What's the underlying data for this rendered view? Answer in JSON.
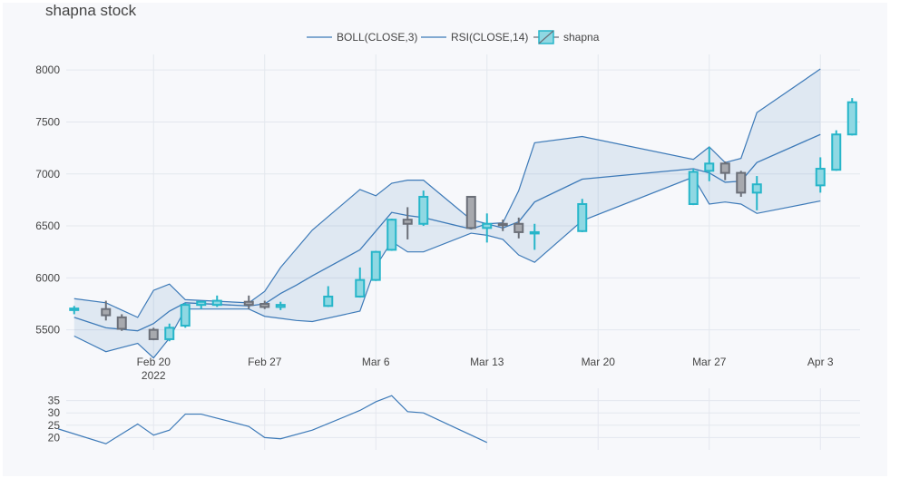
{
  "title": "shapna stock",
  "colors": {
    "line": "#3d7ab8",
    "band": "rgba(61,122,184,0.13)",
    "up": "#26b5c9",
    "up_fill": "#8fd8e3",
    "down": "#6b6f78",
    "down_fill": "#a7a9ae",
    "grid": "#e4e7ee",
    "background": "#f7f8fb"
  },
  "legend": [
    "BOLL(CLOSE,3)",
    "RSI(CLOSE,14)",
    "shapna"
  ],
  "chart_data": [
    {
      "type": "candlestick",
      "name": "shapna",
      "ylim": [
        5200,
        8150
      ],
      "yticks": [
        5500,
        6000,
        6500,
        7000,
        7500,
        8000
      ],
      "xticks": [
        {
          "date": "2022-02-20",
          "label": "Feb 20",
          "sub": "2022"
        },
        {
          "date": "2022-02-27",
          "label": "Feb 27",
          "sub": ""
        },
        {
          "date": "2022-03-06",
          "label": "Mar 6",
          "sub": ""
        },
        {
          "date": "2022-03-13",
          "label": "Mar 13",
          "sub": ""
        },
        {
          "date": "2022-03-20",
          "label": "Mar 20",
          "sub": ""
        },
        {
          "date": "2022-03-27",
          "label": "Mar 27",
          "sub": ""
        },
        {
          "date": "2022-04-03",
          "label": "Apr 3",
          "sub": ""
        }
      ],
      "xrange": [
        "2022-02-14T12:00",
        "2022-04-05T12:00"
      ],
      "candles": [
        {
          "date": "2022-02-15",
          "open": 5690,
          "high": 5730,
          "low": 5650,
          "close": 5705
        },
        {
          "date": "2022-02-17",
          "open": 5700,
          "high": 5780,
          "low": 5590,
          "close": 5640
        },
        {
          "date": "2022-02-18",
          "open": 5620,
          "high": 5650,
          "low": 5490,
          "close": 5510
        },
        {
          "date": "2022-02-20",
          "open": 5500,
          "high": 5520,
          "low": 5400,
          "close": 5410
        },
        {
          "date": "2022-02-21",
          "open": 5410,
          "high": 5560,
          "low": 5390,
          "close": 5520
        },
        {
          "date": "2022-02-22",
          "open": 5540,
          "high": 5760,
          "low": 5520,
          "close": 5740
        },
        {
          "date": "2022-02-23",
          "open": 5740,
          "high": 5780,
          "low": 5700,
          "close": 5770
        },
        {
          "date": "2022-02-24",
          "open": 5740,
          "high": 5830,
          "low": 5720,
          "close": 5780
        },
        {
          "date": "2022-02-26",
          "open": 5770,
          "high": 5830,
          "low": 5700,
          "close": 5740
        },
        {
          "date": "2022-02-27",
          "open": 5750,
          "high": 5780,
          "low": 5700,
          "close": 5720
        },
        {
          "date": "2022-02-28",
          "open": 5720,
          "high": 5770,
          "low": 5690,
          "close": 5740
        },
        {
          "date": "2022-03-03",
          "open": 5730,
          "high": 5920,
          "low": 5720,
          "close": 5820
        },
        {
          "date": "2022-03-05",
          "open": 5820,
          "high": 6100,
          "low": 5810,
          "close": 5980
        },
        {
          "date": "2022-03-06",
          "open": 5980,
          "high": 6260,
          "low": 5970,
          "close": 6250
        },
        {
          "date": "2022-03-07",
          "open": 6270,
          "high": 6570,
          "low": 6260,
          "close": 6560
        },
        {
          "date": "2022-03-08",
          "open": 6560,
          "high": 6680,
          "low": 6370,
          "close": 6520
        },
        {
          "date": "2022-03-09",
          "open": 6520,
          "high": 6840,
          "low": 6500,
          "close": 6780
        },
        {
          "date": "2022-03-12",
          "open": 6780,
          "high": 6780,
          "low": 6470,
          "close": 6480
        },
        {
          "date": "2022-03-13",
          "open": 6480,
          "high": 6620,
          "low": 6340,
          "close": 6520
        },
        {
          "date": "2022-03-14",
          "open": 6520,
          "high": 6560,
          "low": 6450,
          "close": 6510
        },
        {
          "date": "2022-03-15",
          "open": 6520,
          "high": 6580,
          "low": 6380,
          "close": 6440
        },
        {
          "date": "2022-03-16",
          "open": 6430,
          "high": 6520,
          "low": 6270,
          "close": 6440
        },
        {
          "date": "2022-03-19",
          "open": 6450,
          "high": 6760,
          "low": 6440,
          "close": 6710
        },
        {
          "date": "2022-03-26",
          "open": 6710,
          "high": 7050,
          "low": 6700,
          "close": 7020
        },
        {
          "date": "2022-03-27",
          "open": 7030,
          "high": 7260,
          "low": 6930,
          "close": 7100
        },
        {
          "date": "2022-03-28",
          "open": 7100,
          "high": 7120,
          "low": 6940,
          "close": 7010
        },
        {
          "date": "2022-03-29",
          "open": 7010,
          "high": 7030,
          "low": 6780,
          "close": 6820
        },
        {
          "date": "2022-03-30",
          "open": 6820,
          "high": 6980,
          "low": 6650,
          "close": 6900
        },
        {
          "date": "2022-04-03",
          "open": 6890,
          "high": 7160,
          "low": 6820,
          "close": 7050
        },
        {
          "date": "2022-04-04",
          "open": 7040,
          "high": 7420,
          "low": 7030,
          "close": 7380
        },
        {
          "date": "2022-04-05",
          "open": 7380,
          "high": 7730,
          "low": 7370,
          "close": 7690
        }
      ]
    },
    {
      "type": "line",
      "name": "BOLL(CLOSE,3)",
      "x": [
        "2022-02-15",
        "2022-02-17",
        "2022-02-19",
        "2022-02-20",
        "2022-02-21",
        "2022-02-22",
        "2022-02-26",
        "2022-02-27",
        "2022-02-28",
        "2022-03-01",
        "2022-03-02",
        "2022-03-05",
        "2022-03-06",
        "2022-03-07",
        "2022-03-08",
        "2022-03-09",
        "2022-03-12",
        "2022-03-13",
        "2022-03-14",
        "2022-03-15",
        "2022-03-16",
        "2022-03-19",
        "2022-03-26",
        "2022-03-27",
        "2022-03-28",
        "2022-03-29",
        "2022-03-30",
        "2022-04-03"
      ],
      "upper": [
        5800,
        5760,
        5620,
        5880,
        5940,
        5790,
        5760,
        5870,
        6100,
        6280,
        6460,
        6850,
        6790,
        6910,
        6940,
        6940,
        6560,
        6520,
        6530,
        6840,
        7300,
        7360,
        7140,
        7260,
        7110,
        7150,
        7590,
        8010
      ],
      "middle": [
        5620,
        5520,
        5490,
        5560,
        5680,
        5760,
        5730,
        5750,
        5850,
        5930,
        6020,
        6270,
        6450,
        6630,
        6600,
        6580,
        6470,
        6520,
        6480,
        6540,
        6730,
        6950,
        7050,
        7010,
        6920,
        6930,
        7110,
        7380
      ],
      "lower": [
        5440,
        5290,
        5370,
        5230,
        5420,
        5700,
        5700,
        5630,
        5610,
        5590,
        5580,
        5680,
        6110,
        6350,
        6250,
        6250,
        6430,
        6410,
        6370,
        6220,
        6150,
        6550,
        6970,
        6710,
        6730,
        6710,
        6620,
        6740
      ]
    },
    {
      "type": "line",
      "name": "RSI(CLOSE,14)",
      "ylim": [
        15,
        40
      ],
      "yticks": [
        20,
        25,
        30,
        35
      ],
      "x": [
        "2022-02-14",
        "2022-02-17",
        "2022-02-19",
        "2022-02-20",
        "2022-02-21",
        "2022-02-22",
        "2022-02-23",
        "2022-02-26",
        "2022-02-27",
        "2022-02-28",
        "2022-03-02",
        "2022-03-05",
        "2022-03-06",
        "2022-03-07",
        "2022-03-08",
        "2022-03-09",
        "2022-03-13"
      ],
      "y": [
        23.5,
        17.5,
        25.5,
        21,
        23,
        29.5,
        29.5,
        24.5,
        20,
        19.5,
        23,
        31,
        34.5,
        37,
        30.5,
        30,
        18
      ]
    }
  ]
}
